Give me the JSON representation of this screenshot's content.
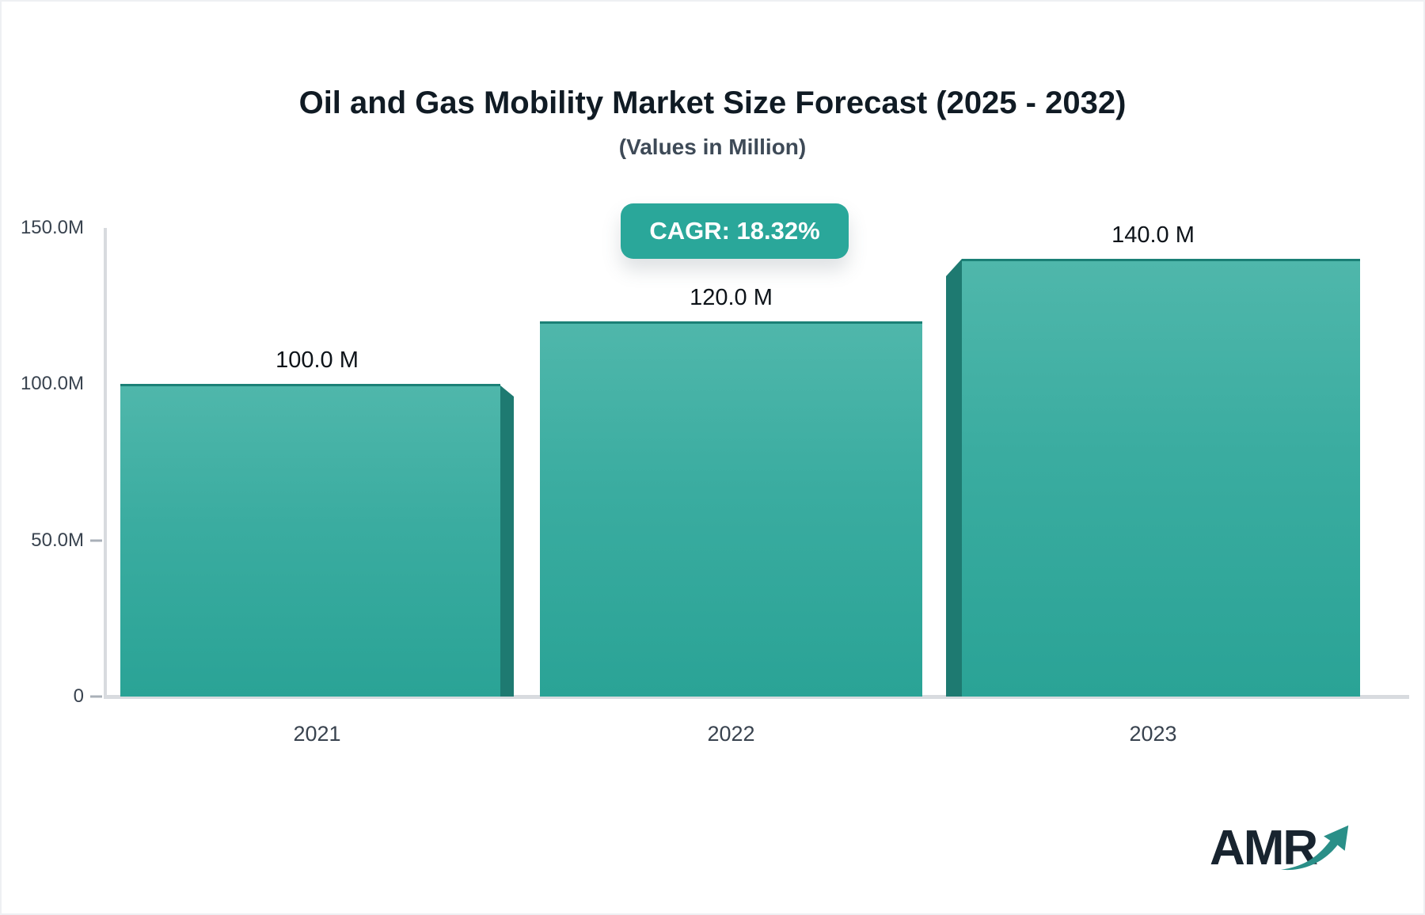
{
  "header": {
    "title": "Oil and Gas Mobility Market Size Forecast (2025 - 2032)",
    "subtitle": "(Values in Million)"
  },
  "badge": {
    "label": "CAGR: 18.32%"
  },
  "logo": {
    "text": "AMR"
  },
  "colors": {
    "bar_gradient_top": "#4fb7ab",
    "bar_gradient_bottom": "#2aa396",
    "bar_side_3d": "#1e7a71",
    "bar_top_edge": "#1b8076",
    "badge_bg": "#2aa79a",
    "axis_line": "#d8dbdf",
    "tick_dash": "#a9b0b8",
    "title_text": "#101b24",
    "axis_text": "#39434f",
    "value_text": "#0d1319",
    "logo_text": "#18242f",
    "logo_arrow": "#2a8f88"
  },
  "y_axis": {
    "ticks": [
      {
        "label": "150.0M",
        "value": 150,
        "dash": false
      },
      {
        "label": "100.0M",
        "value": 100,
        "dash": false
      },
      {
        "label": "50.0M",
        "value": 50,
        "dash": true
      },
      {
        "label": "0",
        "value": 0,
        "dash": true
      }
    ]
  },
  "chart_data": {
    "type": "bar",
    "title": "Oil and Gas Mobility Market Size Forecast (2025 - 2032)",
    "subtitle": "(Values in Million)",
    "unit": "Million",
    "cagr_label": "CAGR: 18.32%",
    "categories": [
      "2021",
      "2022",
      "2023"
    ],
    "values": [
      100.0,
      120.0,
      140.0
    ],
    "value_labels": [
      "100.0 M",
      "120.0 M",
      "140.0 M"
    ],
    "ylim": [
      0,
      150
    ],
    "yticks": [
      0,
      50,
      100,
      150
    ],
    "ytick_labels": [
      "0",
      "50.0M",
      "100.0M",
      "150.0M"
    ],
    "grid": false,
    "legend": false
  }
}
